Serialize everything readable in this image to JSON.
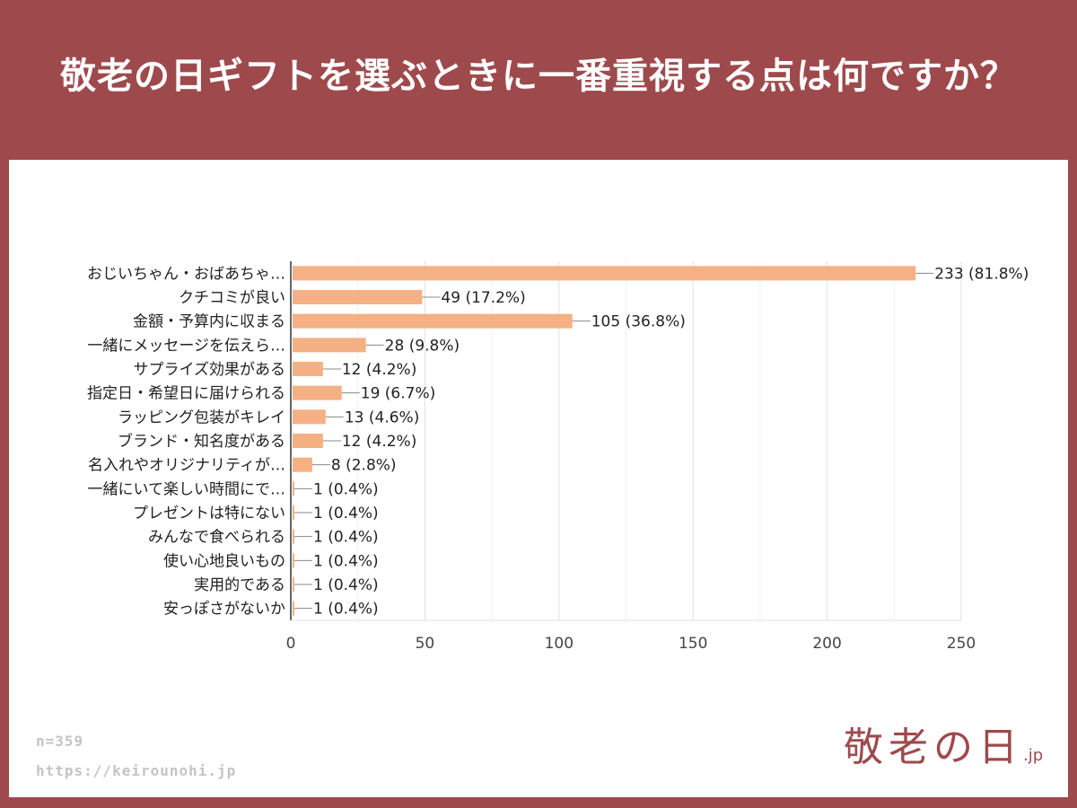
{
  "header": {
    "title": "敬老の日ギフトを選ぶときに一番重視する点は何ですか？"
  },
  "footer": {
    "n": "n=359",
    "url": "https://keirounohi.jp",
    "logo_text": "敬老の日",
    "logo_suffix": ".jp"
  },
  "colors": {
    "background": "#9e4a4c",
    "bar": "#f5b183"
  },
  "chart_data": {
    "type": "bar",
    "orientation": "horizontal",
    "xlim": [
      0,
      250
    ],
    "x_ticks": [
      0,
      50,
      100,
      150,
      200,
      250
    ],
    "grid": true,
    "categories": [
      "おじいちゃん・おばあちゃ…",
      "クチコミが良い",
      "金額・予算内に収まる",
      "一緒にメッセージを伝えら…",
      "サプライズ効果がある",
      "指定日・希望日に届けられる",
      "ラッピング包装がキレイ",
      "ブランド・知名度がある",
      "名入れやオリジナリティが…",
      "一緒にいて楽しい時間にで…",
      "プレゼントは特にない",
      "みんなで食べられる",
      "使い心地良いもの",
      "実用的である",
      "安っぽさがないか"
    ],
    "values": [
      233,
      49,
      105,
      28,
      12,
      19,
      13,
      12,
      8,
      1,
      1,
      1,
      1,
      1,
      1
    ],
    "data_labels": [
      "233 (81.8%)",
      "49 (17.2%)",
      "105 (36.8%)",
      "28 (9.8%)",
      "12 (4.2%)",
      "19 (6.7%)",
      "13 (4.6%)",
      "12 (4.2%)",
      "8 (2.8%)",
      "1 (0.4%)",
      "1 (0.4%)",
      "1 (0.4%)",
      "1 (0.4%)",
      "1 (0.4%)",
      "1 (0.4%)"
    ]
  }
}
